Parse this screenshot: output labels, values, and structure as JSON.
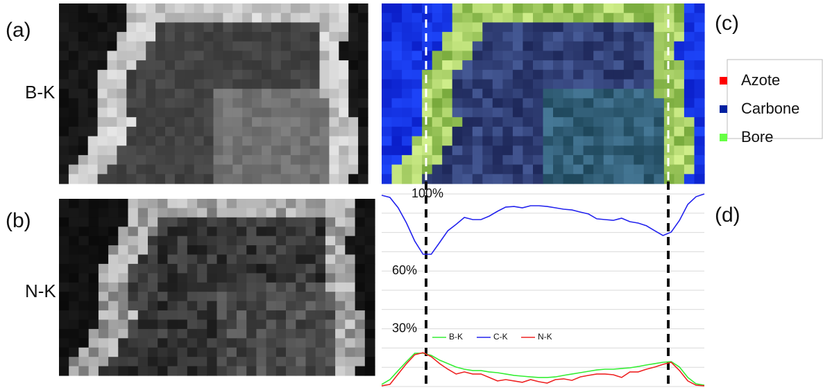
{
  "panels": {
    "a": "(a)",
    "b": "(b)",
    "c": "(c)",
    "d": "(d)"
  },
  "images": {
    "a_label": "B-K",
    "b_label": "N-K"
  },
  "map_legend": [
    {
      "name": "Azote",
      "color": "#ff0000"
    },
    {
      "name": "Carbone",
      "color": "#0020a0"
    },
    {
      "name": "Bore",
      "color": "#66ff44"
    }
  ],
  "chart_data": {
    "type": "line",
    "ylim": [
      0,
      100
    ],
    "yticks": [
      {
        "value": 0,
        "label": null
      },
      {
        "value": 10,
        "label": null
      },
      {
        "value": 20,
        "label": null
      },
      {
        "value": 30,
        "label": "30%"
      },
      {
        "value": 40,
        "label": null
      },
      {
        "value": 50,
        "label": null
      },
      {
        "value": 60,
        "label": "60%"
      },
      {
        "value": 70,
        "label": null
      },
      {
        "value": 80,
        "label": null
      },
      {
        "value": 90,
        "label": null
      },
      {
        "value": 100,
        "label": "100%"
      }
    ],
    "grid": true,
    "series": [
      {
        "name": "B-K",
        "color": "#33ee33",
        "values": [
          1.1,
          3.6,
          8.3,
          12.9,
          17.3,
          17.3,
          16.2,
          13.7,
          11.9,
          10.1,
          9.0,
          8.3,
          8.3,
          7.6,
          7.2,
          6.5,
          5.8,
          5.4,
          5.0,
          4.7,
          4.7,
          5.0,
          5.8,
          6.5,
          7.2,
          7.9,
          8.6,
          9.0,
          9.0,
          9.4,
          9.7,
          10.4,
          11.2,
          11.9,
          12.6,
          12.9,
          10.1,
          4.7,
          1.4,
          0.7
        ]
      },
      {
        "name": "C-K",
        "color": "#2222ee",
        "values": [
          99.3,
          98.2,
          92.8,
          84.9,
          75.5,
          68.7,
          68.7,
          74.8,
          80.9,
          84.2,
          87.8,
          86.7,
          86.7,
          88.5,
          91.0,
          93.2,
          93.5,
          92.8,
          93.9,
          93.9,
          93.5,
          92.8,
          92.1,
          91.7,
          90.6,
          89.6,
          87.1,
          86.7,
          86.3,
          87.4,
          85.6,
          84.9,
          83.5,
          80.9,
          78.4,
          80.2,
          86.3,
          94.6,
          98.6,
          100
        ]
      },
      {
        "name": "N-K",
        "color": "#ee2222",
        "values": [
          0.4,
          1.1,
          6.5,
          11.9,
          16.5,
          17.6,
          15.5,
          11.9,
          9.0,
          6.5,
          7.6,
          6.5,
          6.5,
          4.7,
          2.9,
          3.6,
          2.9,
          2.2,
          3.6,
          2.5,
          1.8,
          3.6,
          4.0,
          3.2,
          5.0,
          5.8,
          6.5,
          6.5,
          6.1,
          4.7,
          7.6,
          7.6,
          9.0,
          10.1,
          11.5,
          12.6,
          8.3,
          2.9,
          0.7,
          0.4
        ]
      }
    ]
  }
}
